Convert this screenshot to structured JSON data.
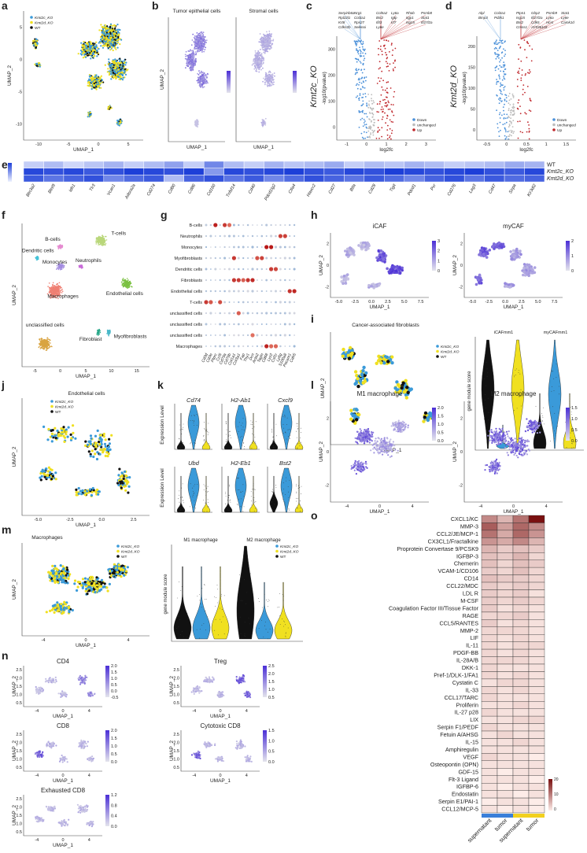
{
  "a": {
    "letter": "a",
    "legend": [
      {
        "name": "Kmt2c_KO",
        "color": "#3a9ad9"
      },
      {
        "name": "Kmt2d_KO",
        "color": "#f0e020"
      },
      {
        "name": "WT",
        "color": "#111111"
      }
    ],
    "xlabel": "UMAP_1",
    "ylabel": "UMAP_2",
    "xticks": [
      "-10",
      "-5",
      "0",
      "5"
    ],
    "yticks": [
      "5",
      "0",
      "-5",
      "-10"
    ]
  },
  "b": {
    "letter": "b",
    "titles": [
      "Tumor epithelial cells",
      "Stromal cells"
    ],
    "xlabel": "UMAP_1",
    "ylabel": "UMAP_2"
  },
  "c": {
    "letter": "c",
    "group": "Kmt2c_KO",
    "xlabel": "log2fc",
    "ylabel": "-log10(pvalue)",
    "xticks": [
      "-1",
      "0",
      "1",
      "2",
      "3"
    ],
    "yticks": [
      "300",
      "200",
      "100",
      "0"
    ],
    "legend": [
      {
        "name": "Down",
        "color": "#4a90d9"
      },
      {
        "name": "unchanged",
        "color": "#bbbbbb"
      },
      {
        "name": "Up",
        "color": "#c0282d"
      }
    ],
    "genes_left": [
      "Serpinb6a",
      "Nrg1",
      "Rpl22l1",
      "Col3a1",
      "Krt8",
      "Rps27",
      "Cdkn2b",
      "Selenoi"
    ],
    "genes_right": [
      "Col5a2",
      "Ly6a",
      "Rhob",
      "Psmb8",
      "Bst2",
      "Igtp",
      "Iigp1",
      "Stat1",
      "Ifit3",
      "Irf7",
      "Isg15",
      "Ifi27l2a",
      "Ly6e"
    ]
  },
  "d": {
    "letter": "d",
    "group": "Kmt2d_KO",
    "xlabel": "log2fc",
    "ylabel": "-log10(pvalue)",
    "xticks": [
      "-0.5",
      "0",
      "0.5",
      "1",
      "1.5"
    ],
    "yticks": [
      "200",
      "150",
      "100",
      "50",
      "0"
    ],
    "legend": [
      {
        "name": "Down",
        "color": "#4a90d9"
      },
      {
        "name": "unchanged",
        "color": "#bbbbbb"
      },
      {
        "name": "Up",
        "color": "#c0282d"
      }
    ],
    "genes_left": [
      "Alpl",
      "Col3a1",
      "Bmp3",
      "Pdzk1"
    ],
    "genes_right": [
      "Ptpn1",
      "Gbp2",
      "Psmb9",
      "Stat1",
      "Isg15",
      "Ifi27l2a",
      "Ly6a",
      "Ly6e",
      "Bst2",
      "Cdk5",
      "Hcst",
      "Camk1d",
      "Cmss1",
      "AY036118"
    ]
  },
  "e": {
    "letter": "e",
    "rows": [
      "WT",
      "Kmt2c_KO",
      "Kmt2d_KO"
    ],
    "genes": [
      "Btn3a2",
      "Btnl9",
      "Idh1",
      "Tlr3",
      "Vcan1",
      "Adora2a",
      "Cd274",
      "Cd80",
      "Cd86",
      "Cd160",
      "Tnfsf14",
      "Cd40",
      "Pdcd1lg2",
      "Ctla4",
      "Havcr2",
      "Cd27",
      "Btla",
      "Cd28",
      "Tigit",
      "Pdcd1",
      "Pvr",
      "Cd276",
      "Lag3",
      "Cd47",
      "Sirpa",
      "Kir3dl2"
    ],
    "values": [
      [
        0.2,
        0.3,
        0.15,
        0.25,
        0.35,
        0.2,
        0.3,
        0.45,
        0.2,
        0.6,
        0.3,
        0.2,
        0.35,
        0.25,
        0.3,
        0.4,
        0.2,
        0.3,
        0.25,
        0.35,
        0.3,
        0.2,
        0.25,
        0.3,
        0.4,
        0.35
      ],
      [
        0.95,
        0.9,
        0.95,
        0.85,
        0.9,
        1,
        0.95,
        0.9,
        1,
        0.5,
        0.95,
        0.9,
        0.95,
        1,
        0.9,
        0.85,
        0.95,
        0.9,
        1,
        0.95,
        0.9,
        0.95,
        1,
        0.9,
        0.85,
        0.95
      ],
      [
        0.85,
        0.7,
        0.8,
        0.9,
        0.6,
        0.75,
        0.85,
        0.3,
        0.8,
        0.9,
        0.7,
        0.85,
        0.6,
        0.75,
        0.9,
        0.8,
        0.7,
        0.85,
        0.75,
        0.6,
        0.8,
        0.9,
        0.7,
        0.85,
        0.75,
        0.8
      ]
    ],
    "scale": [
      0,
      1
    ],
    "colors": [
      "#eef2ff",
      "#1d3fd8"
    ]
  },
  "f": {
    "letter": "f",
    "xlabel": "UMAP_1",
    "ylabel": "UMAP_2",
    "xticks": [
      "-5",
      "0",
      "5",
      "10",
      "15"
    ],
    "clusters": [
      {
        "label": "T-cells",
        "color": "#b9d77a"
      },
      {
        "label": "B-cells",
        "color": "#e58bd0"
      },
      {
        "label": "Dendritic cells",
        "color": "#45c3d8"
      },
      {
        "label": "Monocytes",
        "color": "#a28be0"
      },
      {
        "label": "Neutrophils",
        "color": "#c86cd8"
      },
      {
        "label": "Macrophages",
        "color": "#ef7f72"
      },
      {
        "label": "Endothelial cells",
        "color": "#7bc142"
      },
      {
        "label": "unclassified cells",
        "color": "#d9a441"
      },
      {
        "label": "Fibroblast",
        "color": "#2aa88a"
      },
      {
        "label": "Myofibroblasts",
        "color": "#49b8c8"
      }
    ]
  },
  "g": {
    "letter": "g",
    "rows": [
      "B-cells",
      "Neutrophils",
      "Monocytes",
      "Myofibroblasts",
      "Dendritic cells",
      "Fibroblasts",
      "Endothelial cells",
      "T-cells",
      "unclassified cells",
      "unclassified cells",
      "unclassified cells",
      "Macrophages"
    ],
    "genes": [
      "Cd3d",
      "Cd3e",
      "Ptprc",
      "Ccl5",
      "Cd79a",
      "Cd79b",
      "Col1a1",
      "Col3a1",
      "Fap",
      "Thy1",
      "Dcn",
      "Acta2",
      "Tagln",
      "Cd68",
      "Lyz2",
      "Csf1r",
      "Ly6g",
      "S100a8",
      "Pecam1",
      "Cdh5"
    ]
  },
  "h": {
    "letter": "h",
    "xlabel": "UMAP_1",
    "ylabel": "UMAP_2",
    "xticks": [
      "-5.0",
      "-2.5",
      "0.0",
      "2.5",
      "5.0",
      "7.5"
    ],
    "yticks": [
      "2",
      "0",
      "-2"
    ],
    "plots": [
      {
        "title": "iCAF",
        "colorbar": [
          "0",
          "1",
          "2",
          "3"
        ]
      },
      {
        "title": "myCAF",
        "colorbar": [
          "0",
          "1",
          "2"
        ]
      }
    ]
  },
  "i": {
    "letter": "i",
    "title": "Cancer-associated fibroblasts",
    "xlabel": "UMAP_1",
    "ylabel": "UMAP_2",
    "legend": [
      {
        "name": "Kmt2c_KO",
        "color": "#3a9ad9"
      },
      {
        "name": "Kmt2d_KO",
        "color": "#f0e020"
      },
      {
        "name": "WT",
        "color": "#111111"
      }
    ],
    "violins": [
      "iCAFmm1",
      "myCAFmm1"
    ],
    "violin_ylabel": "gene module score"
  },
  "j": {
    "letter": "j",
    "title": "Endothelial cells",
    "xlabel": "UMAP_1",
    "ylabel": "UMAP_2",
    "xticks": [
      "-5.0",
      "-2.5",
      "0.0",
      "2.5"
    ],
    "legend": [
      {
        "name": "Kmt2c_KO",
        "color": "#3a9ad9"
      },
      {
        "name": "Kmt2d_KO",
        "color": "#f0e020"
      },
      {
        "name": "WT",
        "color": "#111111"
      }
    ]
  },
  "k": {
    "letter": "k",
    "ylabel": "Expression Level",
    "genes": [
      "Cd74",
      "H2-Ab1",
      "Cxcl9",
      "Ubd",
      "H2-Eb1",
      "Bst2"
    ]
  },
  "l": {
    "letter": "l",
    "xlabel": "UMAP_1",
    "ylabel": "UMAP_2",
    "xticks": [
      "-4",
      "0",
      "4"
    ],
    "yticks": [
      "2",
      "0",
      "-2"
    ],
    "plots": [
      {
        "title": "M1 macrophage",
        "colorbar": [
          "0.0",
          "0.5",
          "1.0",
          "1.5",
          "2.0"
        ]
      },
      {
        "title": "M2 macrophage",
        "colorbar": [
          "0.0",
          "0.5",
          "1.0",
          "1.5"
        ]
      }
    ]
  },
  "m": {
    "letter": "m",
    "title": "Macrophages",
    "xlabel": "UMAP_1",
    "ylabel": "UMAP_2",
    "xticks": [
      "-4",
      "0",
      "4"
    ],
    "legend": [
      {
        "name": "Kmt2c_KO",
        "color": "#3a9ad9"
      },
      {
        "name": "Kmt2d_KO",
        "color": "#f0e020"
      },
      {
        "name": "WT",
        "color": "#111111"
      }
    ],
    "violins": [
      "M1 macrophage",
      "M2 macrophage"
    ],
    "violin_ylabel": "gene module score"
  },
  "n": {
    "letter": "n",
    "xlabel": "UMAP_1",
    "ylabel": "UMAP_2",
    "xticks": [
      "-4",
      "0",
      "4"
    ],
    "yticks": [
      "2.5",
      "2.0",
      "1.5",
      "1.0",
      "0.5"
    ],
    "plots": [
      {
        "title": "CD4",
        "colorbar": [
          "-0.5",
          "0.0",
          "0.5",
          "1.0",
          "1.5",
          "2.0"
        ]
      },
      {
        "title": "Treg",
        "colorbar": [
          "0.5",
          "1.0",
          "1.5",
          "2.0",
          "2.5"
        ]
      },
      {
        "title": "CD8",
        "colorbar": [
          "0.0",
          "0.5",
          "1.0",
          "1.5",
          "2.0"
        ]
      },
      {
        "title": "Cytotoxic CD8",
        "colorbar": [
          "0.0",
          "0.5",
          "1.0",
          "1.5"
        ]
      },
      {
        "title": "Exhausted CD8",
        "colorbar": [
          "0.0",
          "0.4",
          "0.8",
          "1.2"
        ]
      }
    ]
  },
  "o": {
    "letter": "o",
    "rows": [
      "CXCL1/KC",
      "MMP-3",
      "CCL2/JE/MCP-1",
      "CX3CL1/Fractalkine",
      "Proprotein Convertase 9/PCSK9",
      "IGFBP-3",
      "Chemerin",
      "VCAM-1/CD106",
      "CD14",
      "CCL22/MDC",
      "LDL R",
      "M-CSF",
      "Coagulation Factor III/Tissue Factor",
      "RAGE",
      "CCL5/RANTES",
      "MMP-2",
      "LIF",
      "IL-11",
      "PDGF-BB",
      "IL-28A/B",
      "DKK-1",
      "Pref-1/DLK-1/FA1",
      "Cystatin C",
      "IL-33",
      "CCL17/TARC",
      "Proliferin",
      "IL-27 p28",
      "LIX",
      "Serpin F1/PEDF",
      "Fetuin A/AHSG",
      "IL-15",
      "Amphiregulin",
      "VEGF",
      "Osteopontin (OPN)",
      "GDF-15",
      "Flt-3 Ligand",
      "IGFBP-6",
      "Endostatin",
      "Serpin E1/PAI-1",
      "CCL12/MCP-5"
    ],
    "columns": [
      "supernatant",
      "tumor",
      "supernatant",
      "tumor"
    ],
    "column_colors": [
      "#3a7fd9",
      "#3a7fd9",
      "#f2d01e",
      "#f2d01e"
    ],
    "values": [
      [
        9,
        5,
        11,
        20
      ],
      [
        13,
        7,
        12,
        9
      ],
      [
        11,
        6,
        12,
        8
      ],
      [
        8,
        6,
        9,
        5
      ],
      [
        5,
        3,
        4,
        3
      ],
      [
        4,
        3,
        5,
        2
      ],
      [
        4,
        2,
        4,
        3
      ],
      [
        3,
        2,
        4,
        2
      ],
      [
        4,
        3,
        3,
        2
      ],
      [
        3,
        2,
        3,
        2
      ],
      [
        3,
        2,
        3,
        1
      ],
      [
        3,
        2,
        3,
        2
      ],
      [
        3,
        1,
        2,
        1
      ],
      [
        2,
        2,
        3,
        1
      ],
      [
        3,
        1,
        2,
        1
      ],
      [
        2,
        2,
        2,
        1
      ],
      [
        2,
        1,
        2,
        1
      ],
      [
        2,
        1,
        2,
        2
      ],
      [
        2,
        1,
        2,
        1
      ],
      [
        2,
        2,
        2,
        1
      ],
      [
        2,
        1,
        1,
        1
      ],
      [
        2,
        1,
        2,
        1
      ],
      [
        1,
        2,
        2,
        1
      ],
      [
        2,
        1,
        2,
        1
      ],
      [
        2,
        1,
        1,
        1
      ],
      [
        1,
        1,
        2,
        1
      ],
      [
        2,
        1,
        1,
        1
      ],
      [
        1,
        1,
        2,
        2
      ],
      [
        2,
        1,
        1,
        1
      ],
      [
        1,
        2,
        1,
        1
      ],
      [
        1,
        1,
        2,
        1
      ],
      [
        1,
        1,
        1,
        1
      ],
      [
        2,
        1,
        1,
        0
      ],
      [
        1,
        1,
        1,
        1
      ],
      [
        1,
        0,
        1,
        1
      ],
      [
        1,
        1,
        1,
        0
      ],
      [
        1,
        0,
        1,
        1
      ],
      [
        1,
        1,
        0,
        1
      ],
      [
        0,
        1,
        1,
        0
      ],
      [
        1,
        0,
        1,
        0
      ]
    ],
    "scale": [
      0,
      20
    ],
    "colors": [
      "#fdece8",
      "#7a1010"
    ],
    "colorbar": [
      "20",
      "10",
      "0"
    ]
  }
}
